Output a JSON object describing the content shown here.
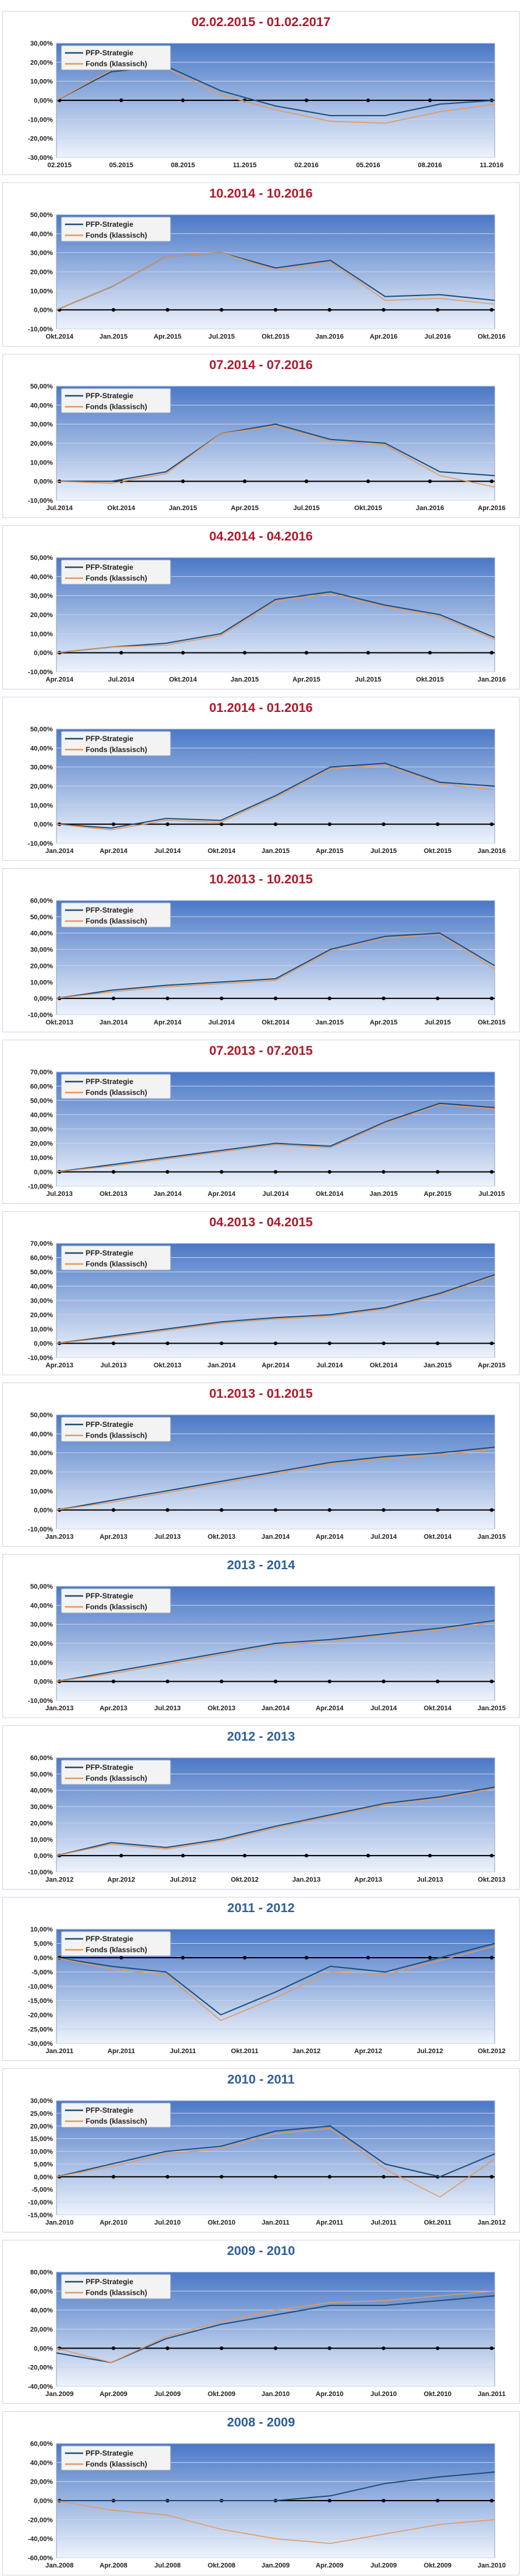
{
  "colors": {
    "strategy": "#1f4e79",
    "fund": "#e39a5f",
    "plot_top": "#4a78c6",
    "plot_bottom": "#eef3fb",
    "title_red": "#b0182a",
    "title_blue": "#2e5f9a"
  },
  "legend": {
    "strategy": "PFP-Strategie",
    "fund": "Fonds (klassisch)"
  },
  "panels": [
    {
      "title": "02.02.2015 - 01.02.2017",
      "title_color": "red",
      "yticks": [
        "30,00%",
        "20,00%",
        "10,00%",
        "0,00%",
        "-10,00%",
        "-20,00%",
        "-30,00%"
      ],
      "xticks": [
        "02.2015",
        "05.2015",
        "08.2015",
        "11.2015",
        "02.2016",
        "05.2016",
        "08.2016",
        "11.2016"
      ]
    },
    {
      "title": "10.2014 - 10.2016",
      "title_color": "red",
      "yticks": [
        "50,00%",
        "40,00%",
        "30,00%",
        "20,00%",
        "10,00%",
        "0,00%",
        "-10,00%"
      ],
      "xticks": [
        "Okt.2014",
        "Jan.2015",
        "Apr.2015",
        "Jul.2015",
        "Okt.2015",
        "Jan.2016",
        "Apr.2016",
        "Jul.2016",
        "Okt.2016"
      ]
    },
    {
      "title": "07.2014 - 07.2016",
      "title_color": "red",
      "yticks": [
        "50,00%",
        "40,00%",
        "30,00%",
        "20,00%",
        "10,00%",
        "0,00%",
        "-10,00%"
      ],
      "xticks": [
        "Jul.2014",
        "Okt.2014",
        "Jan.2015",
        "Apr.2015",
        "Jul.2015",
        "Okt.2015",
        "Jan.2016",
        "Apr.2016"
      ]
    },
    {
      "title": "04.2014 - 04.2016",
      "title_color": "red",
      "yticks": [
        "50,00%",
        "40,00%",
        "30,00%",
        "20,00%",
        "10,00%",
        "0,00%",
        "-10,00%"
      ],
      "xticks": [
        "Apr.2014",
        "Jul.2014",
        "Okt.2014",
        "Jan.2015",
        "Apr.2015",
        "Jul.2015",
        "Okt.2015",
        "Jan.2016"
      ]
    },
    {
      "title": "01.2014 - 01.2016",
      "title_color": "red",
      "yticks": [
        "50,00%",
        "40,00%",
        "30,00%",
        "20,00%",
        "10,00%",
        "0,00%",
        "-10,00%"
      ],
      "xticks": [
        "Jan.2014",
        "Apr.2014",
        "Jul.2014",
        "Okt.2014",
        "Jan.2015",
        "Apr.2015",
        "Jul.2015",
        "Okt.2015",
        "Jan.2016"
      ]
    },
    {
      "title": "10.2013 - 10.2015",
      "title_color": "red",
      "yticks": [
        "60,00%",
        "50,00%",
        "40,00%",
        "30,00%",
        "20,00%",
        "10,00%",
        "0,00%",
        "-10,00%"
      ],
      "xticks": [
        "Okt.2013",
        "Jan.2014",
        "Apr.2014",
        "Jul.2014",
        "Okt.2014",
        "Jan.2015",
        "Apr.2015",
        "Jul.2015",
        "Okt.2015"
      ]
    },
    {
      "title": "07.2013 - 07.2015",
      "title_color": "red",
      "yticks": [
        "70,00%",
        "60,00%",
        "50,00%",
        "40,00%",
        "30,00%",
        "20,00%",
        "10,00%",
        "0,00%",
        "-10,00%"
      ],
      "xticks": [
        "Jul.2013",
        "Okt.2013",
        "Jan.2014",
        "Apr.2014",
        "Jul.2014",
        "Okt.2014",
        "Jan.2015",
        "Apr.2015",
        "Jul.2015"
      ]
    },
    {
      "title": "04.2013 - 04.2015",
      "title_color": "red",
      "yticks": [
        "70,00%",
        "60,00%",
        "50,00%",
        "40,00%",
        "30,00%",
        "20,00%",
        "10,00%",
        "0,00%",
        "-10,00%"
      ],
      "xticks": [
        "Apr.2013",
        "Jul.2013",
        "Okt.2013",
        "Jan.2014",
        "Apr.2014",
        "Jul.2014",
        "Okt.2014",
        "Jan.2015",
        "Apr.2015"
      ]
    },
    {
      "title": "01.2013 - 01.2015",
      "title_color": "red",
      "yticks": [
        "50,00%",
        "40,00%",
        "30,00%",
        "20,00%",
        "10,00%",
        "0,00%",
        "-10,00%"
      ],
      "xticks": [
        "Jan.2013",
        "Apr.2013",
        "Jul.2013",
        "Okt.2013",
        "Jan.2014",
        "Apr.2014",
        "Jul.2014",
        "Okt.2014",
        "Jan.2015"
      ]
    },
    {
      "title": "2013 - 2014",
      "title_color": "blue",
      "yticks": [
        "50,00%",
        "40,00%",
        "30,00%",
        "20,00%",
        "10,00%",
        "0,00%",
        "-10,00%"
      ],
      "xticks": [
        "Jan.2013",
        "Apr.2013",
        "Jul.2013",
        "Okt.2013",
        "Jan.2014",
        "Apr.2014",
        "Jul.2014",
        "Okt.2014",
        "Jan.2015"
      ]
    },
    {
      "title": "2012 - 2013",
      "title_color": "blue",
      "yticks": [
        "60,00%",
        "50,00%",
        "40,00%",
        "30,00%",
        "20,00%",
        "10,00%",
        "0,00%",
        "-10,00%"
      ],
      "xticks": [
        "Jan.2012",
        "Apr.2012",
        "Jul.2012",
        "Okt.2012",
        "Jan.2013",
        "Apr.2013",
        "Jul.2013",
        "Okt.2013"
      ]
    },
    {
      "title": "2011 - 2012",
      "title_color": "blue",
      "yticks": [
        "10,00%",
        "5,00%",
        "0,00%",
        "-5,00%",
        "-10,00%",
        "-15,00%",
        "-20,00%",
        "-25,00%",
        "-30,00%"
      ],
      "xticks": [
        "Jan.2011",
        "Apr.2011",
        "Jul.2011",
        "Okt.2011",
        "Jan.2012",
        "Apr.2012",
        "Jul.2012",
        "Okt.2012"
      ]
    },
    {
      "title": "2010 - 2011",
      "title_color": "blue",
      "yticks": [
        "30,00%",
        "25,00%",
        "20,00%",
        "15,00%",
        "10,00%",
        "5,00%",
        "0,00%",
        "-5,00%",
        "-10,00%",
        "-15,00%"
      ],
      "xticks": [
        "Jan.2010",
        "Apr.2010",
        "Jul.2010",
        "Okt.2010",
        "Jan.2011",
        "Apr.2011",
        "Jul.2011",
        "Okt.2011",
        "Jan.2012"
      ]
    },
    {
      "title": "2009 - 2010",
      "title_color": "blue",
      "yticks": [
        "80,00%",
        "60,00%",
        "40,00%",
        "20,00%",
        "0,00%",
        "-20,00%",
        "-40,00%"
      ],
      "xticks": [
        "Jan.2009",
        "Apr.2009",
        "Jul.2009",
        "Okt.2009",
        "Jan.2010",
        "Apr.2010",
        "Jul.2010",
        "Okt.2010",
        "Jan.2011"
      ]
    },
    {
      "title": "2008 - 2009",
      "title_color": "blue",
      "yticks": [
        "60,00%",
        "40,00%",
        "20,00%",
        "0,00%",
        "-20,00%",
        "-40,00%",
        "-60,00%"
      ],
      "xticks": [
        "Jan.2008",
        "Apr.2008",
        "Jul.2008",
        "Okt.2008",
        "Jan.2009",
        "Apr.2009",
        "Jul.2009",
        "Okt.2009",
        "Jan.2010"
      ]
    }
  ],
  "chart_data": [
    {
      "type": "line",
      "title": "02.02.2015 - 01.02.2017",
      "ylim": [
        -30,
        30
      ],
      "x": [
        0,
        1,
        2,
        3,
        4,
        5,
        6,
        7,
        8
      ],
      "series": [
        {
          "name": "PFP-Strategie",
          "values": [
            0,
            15,
            18,
            5,
            -3,
            -8,
            -8,
            -2,
            0
          ]
        },
        {
          "name": "Fonds (klassisch)",
          "values": [
            0,
            16,
            17,
            3,
            -5,
            -11,
            -12,
            -6,
            -2
          ]
        }
      ]
    },
    {
      "type": "line",
      "title": "10.2014 - 10.2016",
      "ylim": [
        -10,
        50
      ],
      "x": [
        0,
        1,
        2,
        3,
        4,
        5,
        6,
        7,
        8
      ],
      "series": [
        {
          "name": "PFP-Strategie",
          "values": [
            0,
            12,
            28,
            30,
            22,
            26,
            7,
            8,
            5
          ]
        },
        {
          "name": "Fonds (klassisch)",
          "values": [
            0,
            12,
            28,
            30,
            21,
            25,
            5,
            6,
            3
          ]
        }
      ]
    },
    {
      "type": "line",
      "title": "07.2014 - 07.2016",
      "ylim": [
        -10,
        50
      ],
      "x": [
        0,
        1,
        2,
        3,
        4,
        5,
        6,
        7,
        8
      ],
      "series": [
        {
          "name": "PFP-Strategie",
          "values": [
            0,
            0,
            5,
            25,
            30,
            22,
            20,
            5,
            3
          ]
        },
        {
          "name": "Fonds (klassisch)",
          "values": [
            0,
            -1,
            4,
            25,
            29,
            21,
            19,
            3,
            -3
          ]
        }
      ]
    },
    {
      "type": "line",
      "title": "04.2014 - 04.2016",
      "ylim": [
        -10,
        50
      ],
      "x": [
        0,
        1,
        2,
        3,
        4,
        5,
        6,
        7,
        8
      ],
      "series": [
        {
          "name": "PFP-Strategie",
          "values": [
            0,
            3,
            5,
            10,
            28,
            32,
            25,
            20,
            8
          ]
        },
        {
          "name": "Fonds (klassisch)",
          "values": [
            0,
            3,
            4,
            9,
            27,
            31,
            24,
            19,
            7
          ]
        }
      ]
    },
    {
      "type": "line",
      "title": "01.2014 - 01.2016",
      "ylim": [
        -10,
        50
      ],
      "x": [
        0,
        1,
        2,
        3,
        4,
        5,
        6,
        7,
        8
      ],
      "series": [
        {
          "name": "PFP-Strategie",
          "values": [
            0,
            -2,
            3,
            2,
            15,
            30,
            32,
            22,
            20
          ]
        },
        {
          "name": "Fonds (klassisch)",
          "values": [
            0,
            -3,
            2,
            1,
            14,
            29,
            31,
            21,
            18
          ]
        }
      ]
    },
    {
      "type": "line",
      "title": "10.2013 - 10.2015",
      "ylim": [
        -10,
        60
      ],
      "x": [
        0,
        1,
        2,
        3,
        4,
        5,
        6,
        7,
        8
      ],
      "series": [
        {
          "name": "PFP-Strategie",
          "values": [
            0,
            5,
            8,
            10,
            12,
            30,
            38,
            40,
            20
          ]
        },
        {
          "name": "Fonds (klassisch)",
          "values": [
            0,
            4,
            7,
            9,
            11,
            29,
            37,
            39,
            18
          ]
        }
      ]
    },
    {
      "type": "line",
      "title": "07.2013 - 07.2015",
      "ylim": [
        -10,
        70
      ],
      "x": [
        0,
        1,
        2,
        3,
        4,
        5,
        6,
        7,
        8
      ],
      "series": [
        {
          "name": "PFP-Strategie",
          "values": [
            0,
            5,
            10,
            15,
            20,
            18,
            35,
            48,
            45
          ]
        },
        {
          "name": "Fonds (klassisch)",
          "values": [
            0,
            4,
            9,
            14,
            19,
            17,
            34,
            47,
            44
          ]
        }
      ]
    },
    {
      "type": "line",
      "title": "04.2013 - 04.2015",
      "ylim": [
        -10,
        70
      ],
      "x": [
        0,
        1,
        2,
        3,
        4,
        5,
        6,
        7,
        8
      ],
      "series": [
        {
          "name": "PFP-Strategie",
          "values": [
            0,
            5,
            10,
            15,
            18,
            20,
            25,
            35,
            48
          ]
        },
        {
          "name": "Fonds (klassisch)",
          "values": [
            0,
            4,
            9,
            14,
            17,
            19,
            24,
            34,
            47
          ]
        }
      ]
    },
    {
      "type": "line",
      "title": "01.2013 - 01.2015",
      "ylim": [
        -10,
        50
      ],
      "x": [
        0,
        1,
        2,
        3,
        4,
        5,
        6,
        7,
        8
      ],
      "series": [
        {
          "name": "PFP-Strategie",
          "values": [
            0,
            5,
            10,
            15,
            20,
            25,
            28,
            30,
            33
          ]
        },
        {
          "name": "Fonds (klassisch)",
          "values": [
            0,
            4,
            9,
            14,
            19,
            24,
            27,
            29,
            32
          ]
        }
      ]
    },
    {
      "type": "line",
      "title": "2013 - 2014",
      "ylim": [
        -10,
        50
      ],
      "x": [
        0,
        1,
        2,
        3,
        4,
        5,
        6,
        7,
        8
      ],
      "series": [
        {
          "name": "PFP-Strategie",
          "values": [
            0,
            5,
            10,
            15,
            20,
            22,
            25,
            28,
            32
          ]
        },
        {
          "name": "Fonds (klassisch)",
          "values": [
            0,
            4,
            9,
            14,
            19,
            21,
            24,
            27,
            31
          ]
        }
      ]
    },
    {
      "type": "line",
      "title": "2012 - 2013",
      "ylim": [
        -10,
        60
      ],
      "x": [
        0,
        1,
        2,
        3,
        4,
        5,
        6,
        7,
        8
      ],
      "series": [
        {
          "name": "PFP-Strategie",
          "values": [
            0,
            8,
            5,
            10,
            18,
            25,
            32,
            36,
            42
          ]
        },
        {
          "name": "Fonds (klassisch)",
          "values": [
            0,
            7,
            4,
            9,
            17,
            24,
            31,
            35,
            41
          ]
        }
      ]
    },
    {
      "type": "line",
      "title": "2011 - 2012",
      "ylim": [
        -30,
        10
      ],
      "x": [
        0,
        1,
        2,
        3,
        4,
        5,
        6,
        7,
        8
      ],
      "series": [
        {
          "name": "PFP-Strategie",
          "values": [
            0,
            -3,
            -5,
            -20,
            -12,
            -3,
            -5,
            0,
            5
          ]
        },
        {
          "name": "Fonds (klassisch)",
          "values": [
            0,
            -4,
            -6,
            -22,
            -14,
            -5,
            -6,
            -1,
            4
          ]
        }
      ]
    },
    {
      "type": "line",
      "title": "2010 - 2011",
      "ylim": [
        -15,
        30
      ],
      "x": [
        0,
        1,
        2,
        3,
        4,
        5,
        6,
        7,
        8
      ],
      "series": [
        {
          "name": "PFP-Strategie",
          "values": [
            0,
            5,
            10,
            12,
            18,
            20,
            5,
            0,
            9
          ]
        },
        {
          "name": "Fonds (klassisch)",
          "values": [
            0,
            4,
            9,
            11,
            17,
            19,
            3,
            -8,
            7
          ]
        }
      ]
    },
    {
      "type": "line",
      "title": "2009 - 2010",
      "ylim": [
        -40,
        80
      ],
      "x": [
        0,
        1,
        2,
        3,
        4,
        5,
        6,
        7,
        8
      ],
      "series": [
        {
          "name": "PFP-Strategie",
          "values": [
            -5,
            -15,
            10,
            25,
            35,
            45,
            45,
            50,
            55
          ]
        },
        {
          "name": "Fonds (klassisch)",
          "values": [
            0,
            -15,
            12,
            28,
            40,
            48,
            50,
            55,
            60
          ]
        }
      ]
    },
    {
      "type": "line",
      "title": "2008 - 2009",
      "ylim": [
        -60,
        60
      ],
      "x": [
        0,
        1,
        2,
        3,
        4,
        5,
        6,
        7,
        8
      ],
      "series": [
        {
          "name": "PFP-Strategie",
          "values": [
            0,
            0,
            0,
            0,
            0,
            5,
            18,
            25,
            30
          ]
        },
        {
          "name": "Fonds (klassisch)",
          "values": [
            0,
            -10,
            -15,
            -30,
            -40,
            -45,
            -35,
            -25,
            -20
          ]
        }
      ]
    }
  ]
}
